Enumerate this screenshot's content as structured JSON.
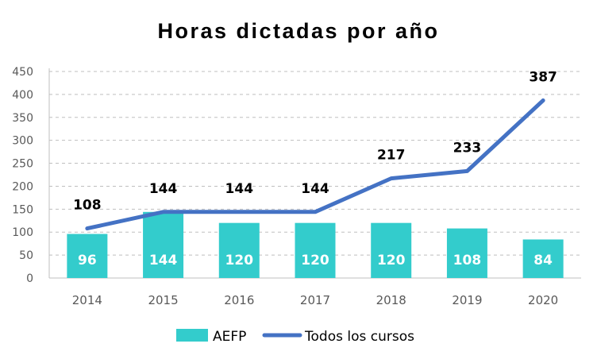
{
  "colors": {
    "bar": "#33CCCC",
    "line": "#4472C4",
    "grid": "#BFBFBF",
    "axis_text": "#595959"
  },
  "chart_data": {
    "type": "bar",
    "title": "Horas dictadas por año",
    "categories": [
      "2014",
      "2015",
      "2016",
      "2017",
      "2018",
      "2019",
      "2020"
    ],
    "series": [
      {
        "name": "AEFP",
        "type": "bar",
        "values": [
          96,
          144,
          120,
          120,
          120,
          108,
          84
        ]
      },
      {
        "name": "Todos los cursos",
        "type": "line",
        "values": [
          108,
          144,
          144,
          144,
          217,
          233,
          387
        ]
      }
    ],
    "ylim": [
      0,
      450
    ],
    "yticks": [
      "0",
      "50",
      "100",
      "150",
      "200",
      "250",
      "300",
      "350",
      "400",
      "450"
    ],
    "grid": true,
    "legend": "bottom"
  }
}
